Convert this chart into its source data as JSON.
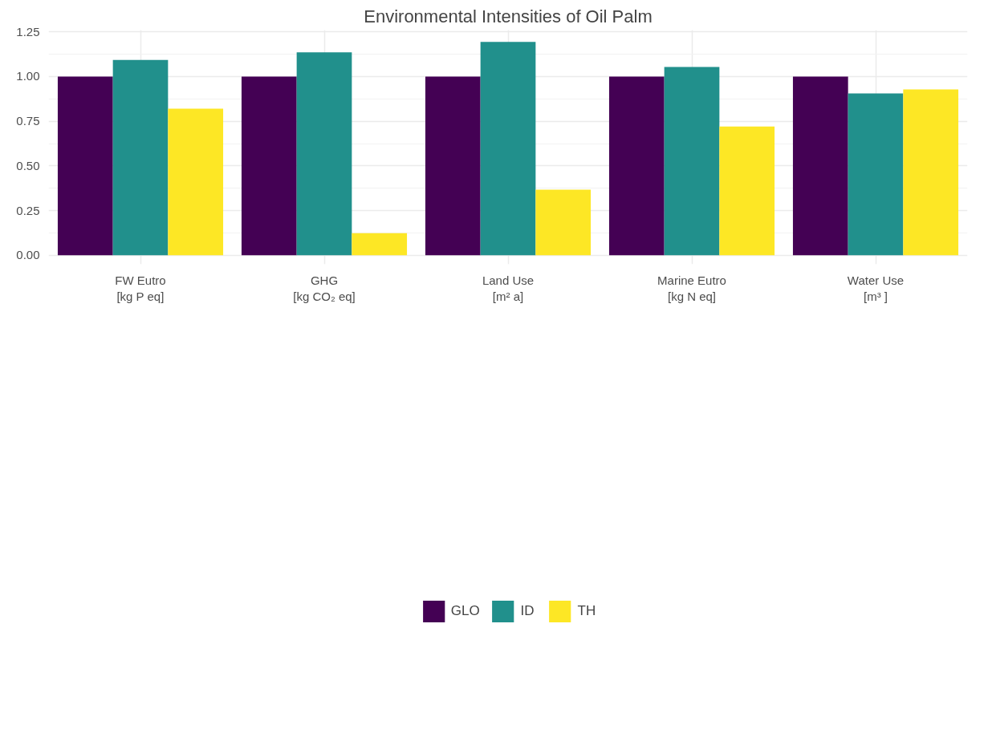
{
  "chart_data": {
    "type": "bar",
    "title": "Environmental Intensities of Oil Palm",
    "categories": [
      "FW Eutro\n[kg P eq]",
      "GHG\n[kg CO₂ eq]",
      "Land Use\n[m² a]",
      "Marine Eutro\n[kg N eq]",
      "Water Use\n[m³ ]"
    ],
    "series": [
      {
        "name": "GLO",
        "color": "#440154",
        "values": [
          1.0,
          1.0,
          1.0,
          1.0,
          1.0
        ]
      },
      {
        "name": "ID",
        "color": "#21908c",
        "values": [
          1.093,
          1.135,
          1.194,
          1.054,
          0.906
        ]
      },
      {
        "name": "TH",
        "color": "#fde725",
        "values": [
          0.82,
          0.124,
          0.367,
          0.72,
          0.928
        ]
      }
    ],
    "ylim": [
      -0.05,
      1.26
    ],
    "yticks": [
      {
        "value": 0,
        "label": "0.00"
      },
      {
        "value": 0.25,
        "label": "0.25"
      },
      {
        "value": 0.5,
        "label": "0.50"
      },
      {
        "value": 0.75,
        "label": "0.75"
      },
      {
        "value": 1.0,
        "label": "1.00"
      },
      {
        "value": 1.25,
        "label": "1.25"
      }
    ],
    "grid": true,
    "legend": "bottom"
  }
}
